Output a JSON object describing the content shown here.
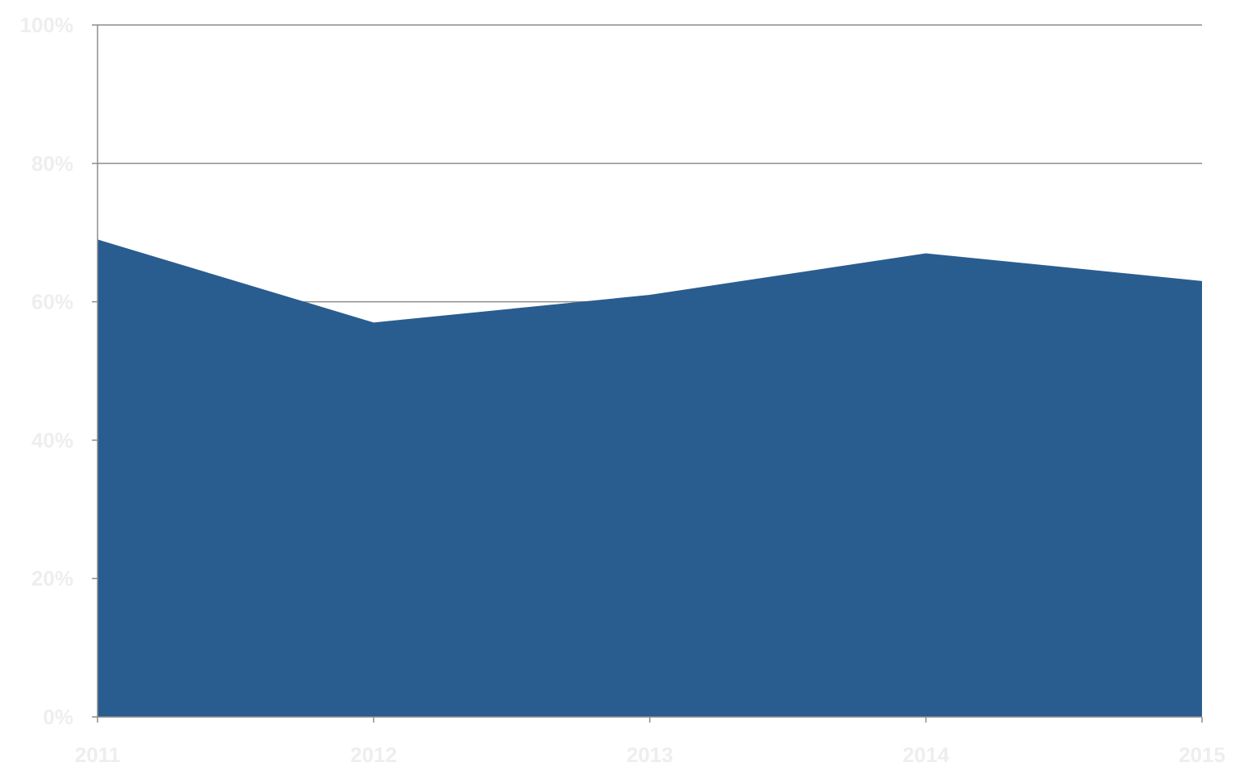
{
  "chart_data": {
    "type": "area",
    "title": "",
    "xlabel": "",
    "ylabel": "",
    "categories": [
      "2011",
      "2012",
      "2013",
      "2014",
      "2015"
    ],
    "series": [
      {
        "values": [
          0.69,
          0.57,
          0.61,
          0.67,
          0.63
        ]
      }
    ],
    "ylim": [
      0,
      1
    ],
    "y_ticks": [
      0,
      0.2,
      0.4,
      0.6,
      0.8,
      1.0
    ],
    "y_tick_labels": [
      "0%",
      "20%",
      "40%",
      "60%",
      "80%",
      "100%"
    ],
    "grid": true,
    "legend": "none",
    "colors": {
      "fill": "#2a5d8f",
      "grid": "#8c8c8c",
      "axis": "#8c8c8c",
      "tick_label": "#eeeeee"
    }
  }
}
